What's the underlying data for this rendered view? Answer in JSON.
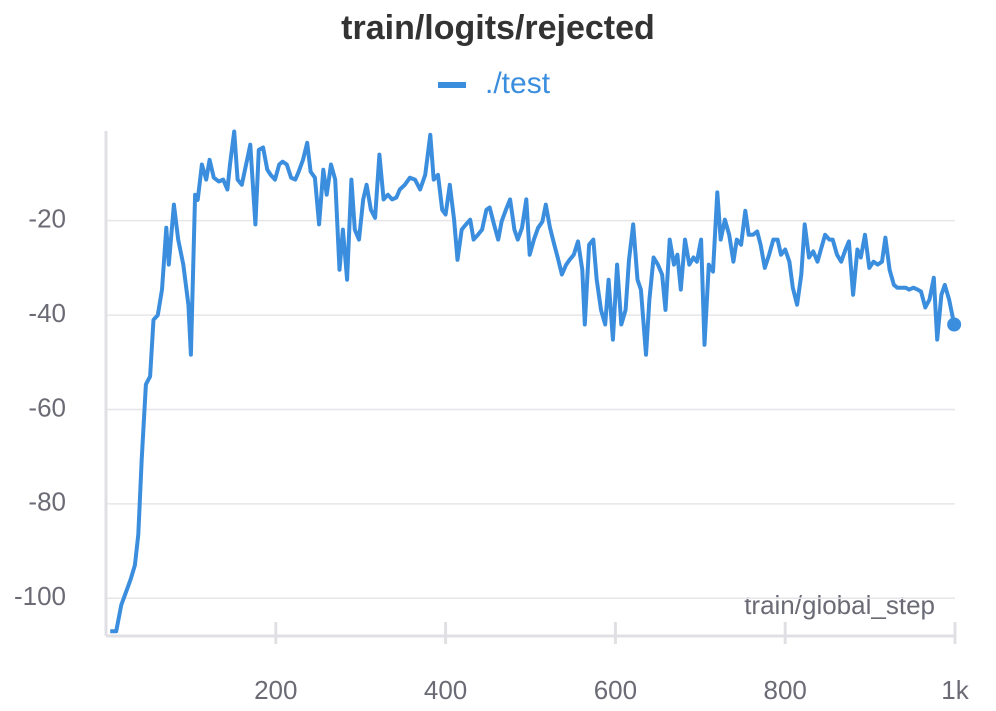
{
  "chart_data": {
    "type": "line",
    "title": "train/logits/rejected",
    "x_label": "train/global_step",
    "xlim": [
      0,
      1000
    ],
    "xticks": [
      200,
      400,
      600,
      800,
      {
        "value": 1000,
        "label": "1k"
      }
    ],
    "ylim": [
      -108,
      -1
    ],
    "yticks": [
      -20,
      -40,
      -60,
      -80,
      -100
    ],
    "grid": true,
    "legend": "top",
    "series": [
      {
        "name": "./test",
        "color": "#3b8ede",
        "x": [
          5,
          12,
          18,
          25,
          29,
          34,
          38,
          42,
          47,
          52,
          56,
          61,
          66,
          71,
          74,
          80,
          85,
          91,
          97,
          100,
          105,
          108,
          113,
          118,
          122,
          127,
          133,
          138,
          143,
          146,
          151,
          155,
          160,
          165,
          170,
          176,
          180,
          185,
          190,
          194,
          199,
          204,
          208,
          213,
          218,
          223,
          227,
          232,
          237,
          241,
          246,
          251,
          256,
          260,
          265,
          270,
          275,
          279,
          284,
          289,
          293,
          298,
          303,
          307,
          312,
          317,
          322,
          327,
          332,
          337,
          342,
          346,
          352,
          358,
          364,
          370,
          376,
          382,
          386,
          391,
          396,
          400,
          405,
          410,
          414,
          419,
          424,
          429,
          433,
          438,
          443,
          448,
          452,
          457,
          462,
          466,
          471,
          476,
          481,
          485,
          490,
          495,
          499,
          504,
          509,
          514,
          518,
          523,
          528,
          532,
          537,
          542,
          546,
          551,
          556,
          561,
          564,
          569,
          574,
          578,
          583,
          588,
          592,
          597,
          602,
          607,
          612,
          616,
          621,
          626,
          630,
          636,
          640,
          645,
          650,
          655,
          659,
          664,
          669,
          673,
          677,
          682,
          687,
          692,
          696,
          701,
          705,
          710,
          715,
          720,
          724,
          729,
          734,
          739,
          743,
          748,
          753,
          757,
          762,
          767,
          771,
          776,
          781,
          786,
          791,
          795,
          800,
          805,
          809,
          814,
          819,
          823,
          828,
          833,
          838,
          842,
          847,
          852,
          856,
          861,
          866,
          871,
          875,
          880,
          885,
          889,
          894,
          899,
          904,
          909,
          914,
          918,
          923,
          928,
          932,
          937,
          942,
          946,
          951,
          956,
          960,
          965,
          970,
          975,
          979,
          984,
          988,
          993,
          999
        ],
        "values": [
          -107,
          -107,
          -101.4,
          -98,
          -96,
          -93,
          -86.5,
          -70.6,
          -54.7,
          -53,
          -41,
          -40,
          -34.6,
          -21.5,
          -29.3,
          -16.6,
          -24,
          -29.3,
          -37.8,
          -48.4,
          -14.5,
          -15.6,
          -8.1,
          -11.3,
          -7.1,
          -10.9,
          -11.7,
          -11.3,
          -13.4,
          -8.1,
          -1.1,
          -11.3,
          -12.4,
          -8.1,
          -3.9,
          -20.8,
          -5,
          -4.5,
          -9.2,
          -10.3,
          -11.3,
          -8.1,
          -7.5,
          -8.1,
          -10.9,
          -11.3,
          -9.6,
          -7.1,
          -3.5,
          -9.6,
          -10.9,
          -20.8,
          -9.2,
          -14.5,
          -8.1,
          -11.3,
          -30.4,
          -21.9,
          -32.5,
          -11.3,
          -21.9,
          -24,
          -15.5,
          -12.4,
          -17.7,
          -19.4,
          -6,
          -15.5,
          -14.5,
          -15.5,
          -15.1,
          -13.4,
          -12.4,
          -10.9,
          -11.3,
          -13.4,
          -10.3,
          -1.8,
          -11.3,
          -10.3,
          -17.7,
          -18.7,
          -12.4,
          -19.8,
          -28.3,
          -21.9,
          -20.8,
          -19.8,
          -24,
          -23,
          -21.9,
          -17.7,
          -17.2,
          -20.8,
          -24,
          -20.2,
          -17.7,
          -15.5,
          -21.9,
          -24,
          -21.5,
          -15.5,
          -27.2,
          -24,
          -21.5,
          -20.2,
          -16.6,
          -21.5,
          -25.1,
          -27.8,
          -31.4,
          -29.3,
          -28.3,
          -27.2,
          -24.4,
          -30.4,
          -42,
          -25.1,
          -24,
          -32.5,
          -38.9,
          -42,
          -32.5,
          -45.2,
          -29.3,
          -42,
          -38.9,
          -28.3,
          -20.8,
          -32.5,
          -34.6,
          -48.4,
          -36.7,
          -27.8,
          -29.3,
          -31.4,
          -38.9,
          -24,
          -29.3,
          -27.2,
          -34.6,
          -24,
          -29.3,
          -27.8,
          -28.7,
          -24,
          -46.3,
          -29.3,
          -30.8,
          -14,
          -24,
          -19.8,
          -23,
          -28.7,
          -24,
          -25.1,
          -17.9,
          -23,
          -23,
          -22.3,
          -25.1,
          -30,
          -27.2,
          -24,
          -24,
          -27.2,
          -26.1,
          -28.7,
          -34.2,
          -37.8,
          -31.4,
          -20.8,
          -27.8,
          -26.5,
          -28.7,
          -26.1,
          -23,
          -24,
          -24,
          -27.2,
          -28.7,
          -26.1,
          -24.4,
          -35.7,
          -26.1,
          -27.8,
          -23,
          -30,
          -28.7,
          -29.3,
          -28.7,
          -23.6,
          -30.4,
          -33.6,
          -34.2,
          -34.2,
          -34.2,
          -34.6,
          -34.2,
          -34.6,
          -35,
          -38.4,
          -36.7,
          -32.1,
          -45.2,
          -35.7,
          -33.6,
          -36.7,
          -42
        ]
      }
    ]
  }
}
